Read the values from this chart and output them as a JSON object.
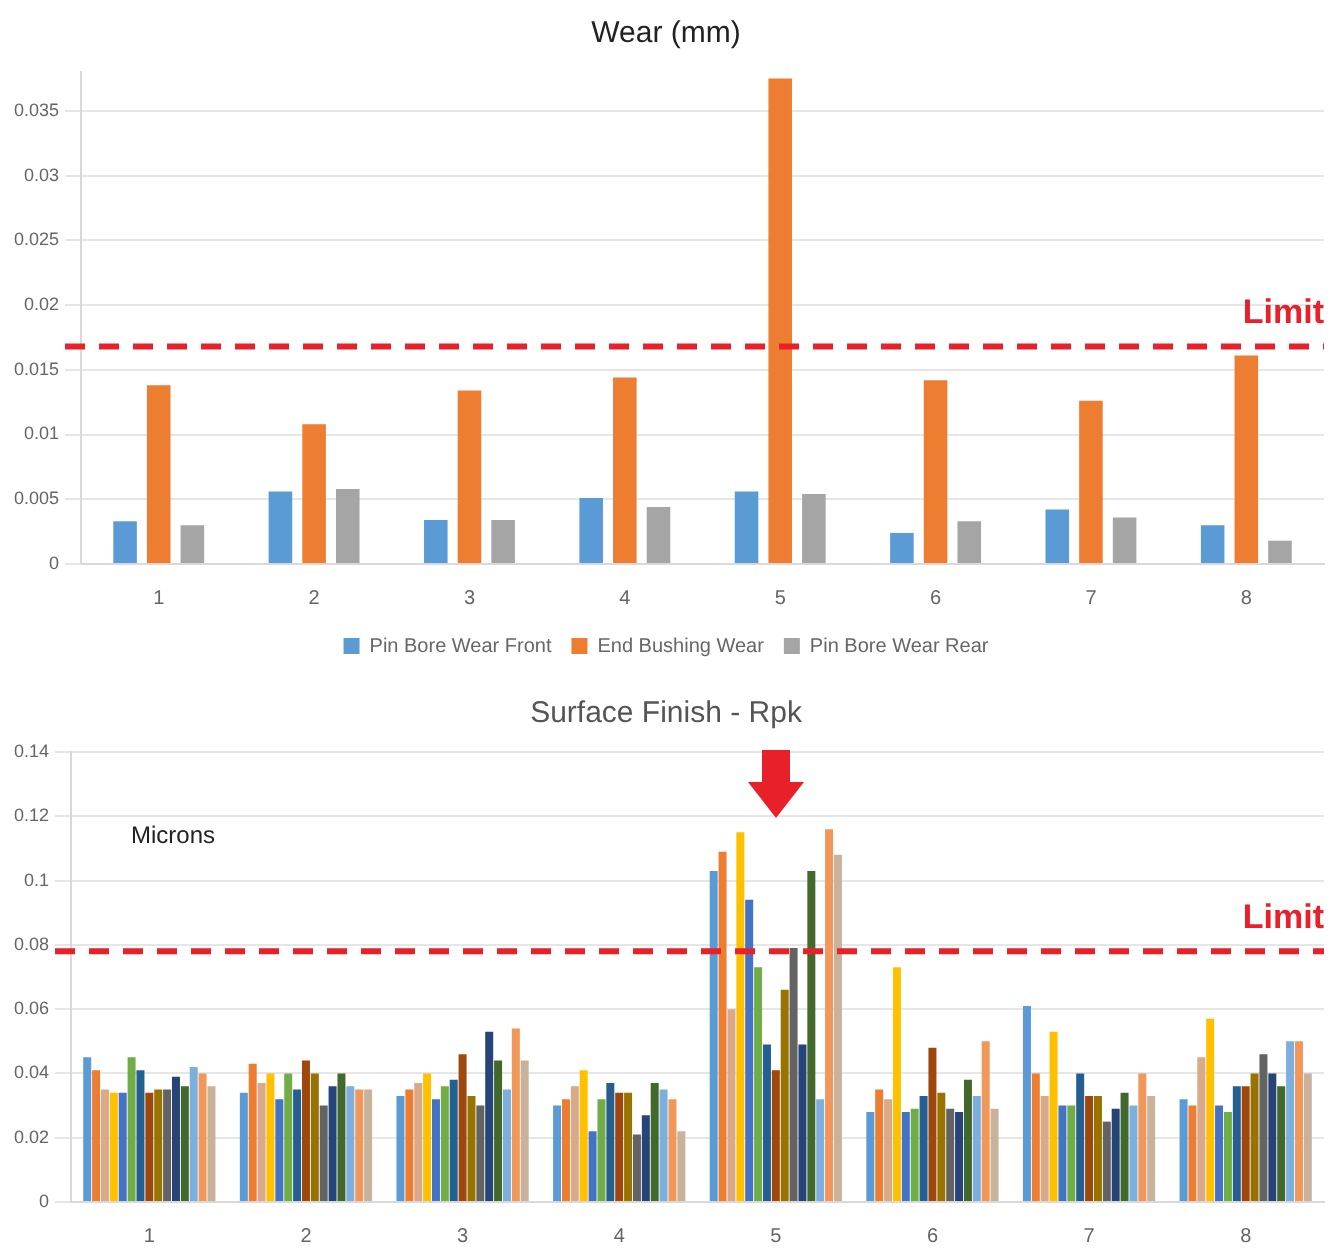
{
  "chart_data": [
    {
      "type": "bar",
      "title": "Wear (mm)",
      "categories": [
        "1",
        "2",
        "3",
        "4",
        "5",
        "6",
        "7",
        "8"
      ],
      "series": [
        {
          "name": "Pin Bore Wear Front",
          "color": "#5b9bd5",
          "values": [
            0.0033,
            0.0056,
            0.0034,
            0.0051,
            0.0056,
            0.0024,
            0.0042,
            0.003
          ]
        },
        {
          "name": "End Bushing Wear",
          "color": "#ed7d31",
          "values": [
            0.0138,
            0.0108,
            0.0134,
            0.0144,
            0.0375,
            0.0142,
            0.0126,
            0.0161
          ]
        },
        {
          "name": "Pin Bore Wear Rear",
          "color": "#a5a5a5",
          "values": [
            0.003,
            0.0058,
            0.0034,
            0.0044,
            0.0054,
            0.0033,
            0.0036,
            0.0018
          ]
        }
      ],
      "ylim": [
        0,
        0.038
      ],
      "yticks": [
        0,
        0.005,
        0.01,
        0.015,
        0.02,
        0.025,
        0.03,
        0.035
      ],
      "grid": "y",
      "legend": "bottom",
      "ref_lines": [
        {
          "axis": "y",
          "value": 0.0168,
          "label": "Limit",
          "color": "#e8202a",
          "line_style": "dashed"
        }
      ]
    },
    {
      "type": "bar",
      "title": "Surface Finish - Rpk",
      "categories": [
        "1",
        "2",
        "3",
        "4",
        "5",
        "6",
        "7",
        "8"
      ],
      "series": [
        {
          "color": "#5b9bd5",
          "values": [
            0.045,
            0.034,
            0.033,
            0.03,
            0.103,
            0.028,
            0.061,
            0.032
          ]
        },
        {
          "color": "#ed7d31",
          "values": [
            0.041,
            0.043,
            0.035,
            0.032,
            0.109,
            0.035,
            0.04,
            0.03
          ]
        },
        {
          "color": "#d9a98a",
          "values": [
            0.035,
            0.037,
            0.037,
            0.036,
            0.06,
            0.032,
            0.033,
            0.045
          ]
        },
        {
          "color": "#ffc000",
          "values": [
            0.034,
            0.04,
            0.04,
            0.041,
            0.115,
            0.073,
            0.053,
            0.057
          ]
        },
        {
          "color": "#4472c4",
          "values": [
            0.034,
            0.032,
            0.032,
            0.022,
            0.094,
            0.028,
            0.03,
            0.03
          ]
        },
        {
          "color": "#70ad47",
          "values": [
            0.045,
            0.04,
            0.036,
            0.032,
            0.073,
            0.029,
            0.03,
            0.028
          ]
        },
        {
          "color": "#255e91",
          "values": [
            0.041,
            0.035,
            0.038,
            0.037,
            0.049,
            0.033,
            0.04,
            0.036
          ]
        },
        {
          "color": "#9e480e",
          "values": [
            0.034,
            0.044,
            0.046,
            0.034,
            0.041,
            0.048,
            0.033,
            0.036
          ]
        },
        {
          "color": "#997300",
          "values": [
            0.035,
            0.04,
            0.033,
            0.034,
            0.066,
            0.034,
            0.033,
            0.04
          ]
        },
        {
          "color": "#636363",
          "values": [
            0.035,
            0.03,
            0.03,
            0.021,
            0.079,
            0.029,
            0.025,
            0.046
          ]
        },
        {
          "color": "#264478",
          "values": [
            0.039,
            0.036,
            0.053,
            0.027,
            0.049,
            0.028,
            0.029,
            0.04
          ]
        },
        {
          "color": "#43682b",
          "values": [
            0.036,
            0.04,
            0.044,
            0.037,
            0.103,
            0.038,
            0.034,
            0.036
          ]
        },
        {
          "color": "#7cafdd",
          "values": [
            0.042,
            0.036,
            0.035,
            0.035,
            0.032,
            0.033,
            0.03,
            0.05
          ]
        },
        {
          "color": "#f1975a",
          "values": [
            0.04,
            0.035,
            0.054,
            0.032,
            0.116,
            0.05,
            0.04,
            0.05
          ]
        },
        {
          "color": "#c9b29b",
          "values": [
            0.036,
            0.035,
            0.044,
            0.022,
            0.108,
            0.029,
            0.033,
            0.04
          ]
        }
      ],
      "ylim": [
        0,
        0.14
      ],
      "yticks": [
        0,
        0.02,
        0.04,
        0.06,
        0.08,
        0.1,
        0.12,
        0.14
      ],
      "grid": "y",
      "legend": false,
      "annotations": [
        "Microns"
      ],
      "ref_lines": [
        {
          "axis": "y",
          "value": 0.078,
          "label": "Limit",
          "color": "#e8202a",
          "line_style": "dashed"
        }
      ]
    }
  ]
}
